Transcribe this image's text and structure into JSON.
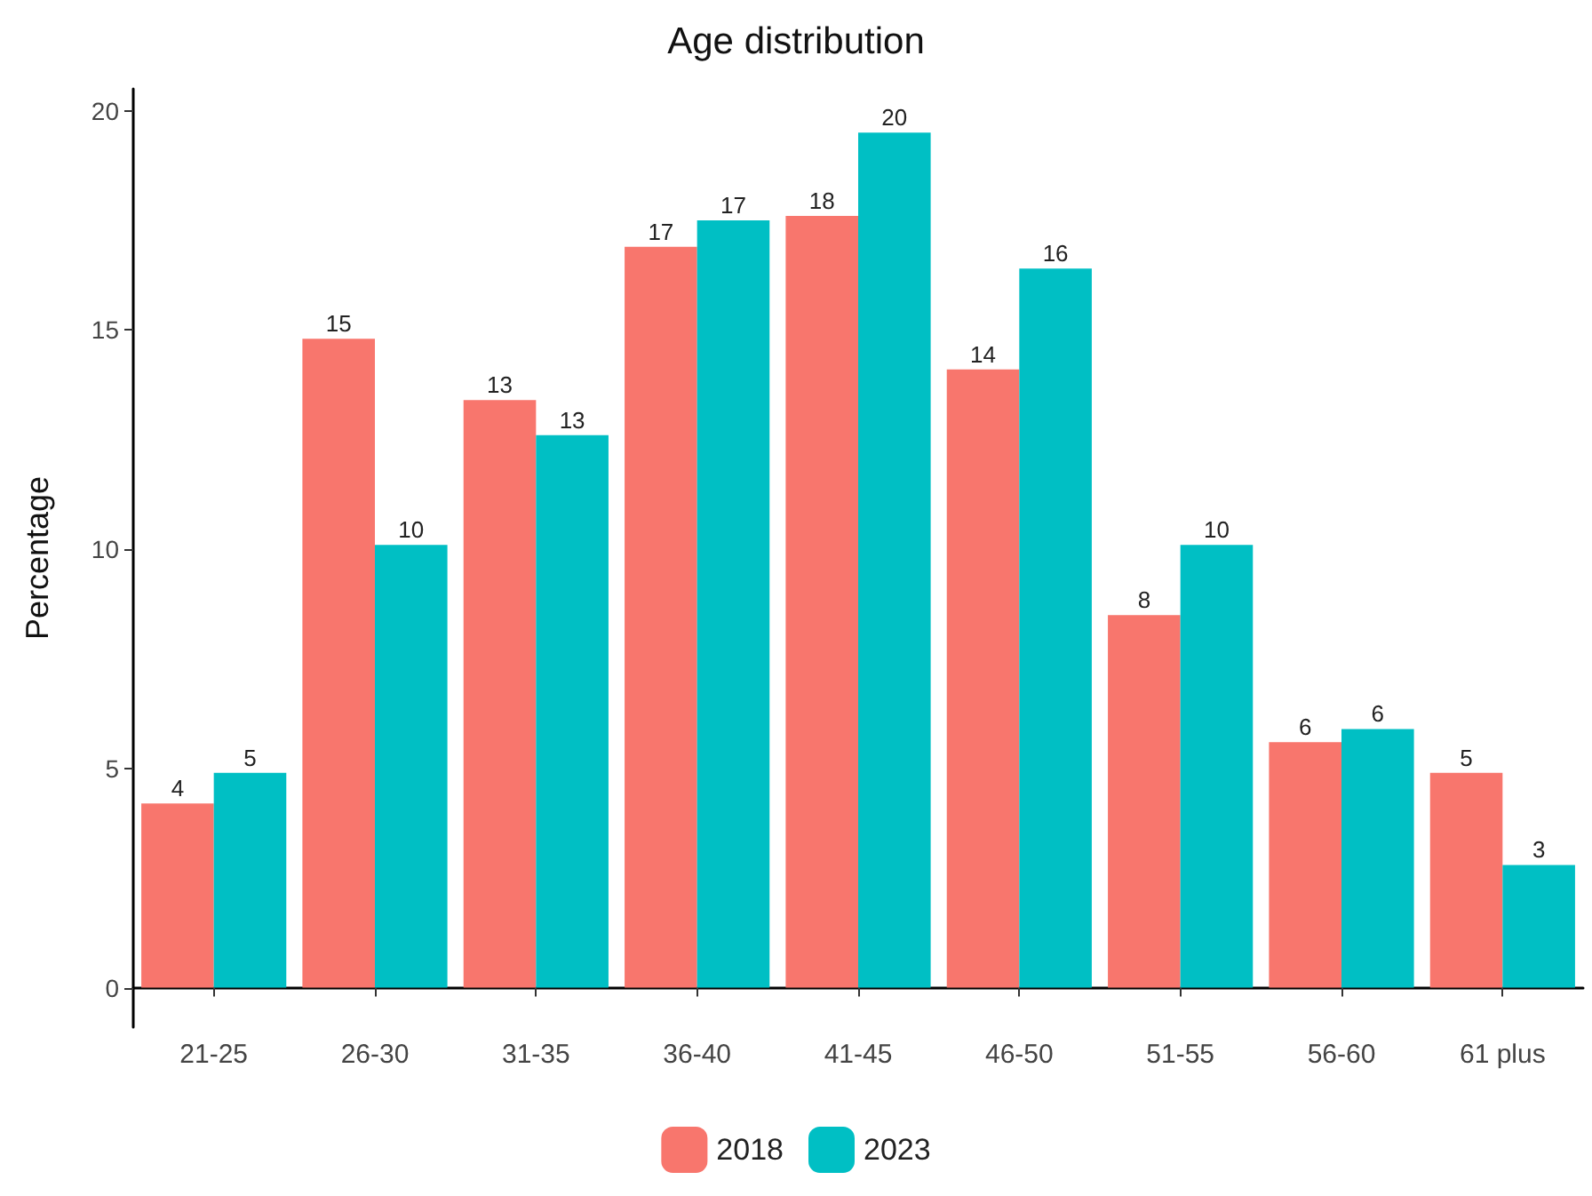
{
  "chart_data": {
    "type": "bar",
    "title": "Age distribution",
    "ylabel": "Percentage",
    "categories": [
      "21-25",
      "26-30",
      "31-35",
      "36-40",
      "41-45",
      "46-50",
      "51-55",
      "56-60",
      "61 plus"
    ],
    "series": [
      {
        "name": "2018",
        "color": "#f8766d",
        "values": [
          4.2,
          14.8,
          13.4,
          16.9,
          17.6,
          14.1,
          8.5,
          5.6,
          4.9
        ],
        "value_labels": [
          "4",
          "15",
          "13",
          "17",
          "18",
          "14",
          "8",
          "6",
          "5"
        ]
      },
      {
        "name": "2023",
        "color": "#00bfc4",
        "values": [
          4.9,
          10.1,
          12.6,
          17.5,
          19.5,
          16.4,
          10.1,
          5.9,
          2.8
        ],
        "value_labels": [
          "5",
          "10",
          "13",
          "17",
          "20",
          "16",
          "10",
          "6",
          "3"
        ]
      }
    ],
    "ylim": [
      -0.9,
      20.5
    ],
    "yticks": [
      0,
      5,
      10,
      15,
      20
    ],
    "grid": false,
    "legend": "bottom"
  }
}
